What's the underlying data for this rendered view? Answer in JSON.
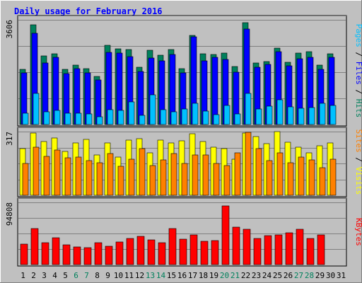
{
  "chart_data": {
    "type": "bar",
    "title": "Daily usage for February 2016",
    "days": [
      "1",
      "2",
      "3",
      "4",
      "5",
      "6",
      "7",
      "8",
      "9",
      "10",
      "11",
      "12",
      "13",
      "14",
      "15",
      "16",
      "17",
      "18",
      "19",
      "20",
      "21",
      "22",
      "23",
      "24",
      "25",
      "26",
      "27",
      "28",
      "29",
      "30",
      "31"
    ],
    "weekend_days": [
      "6",
      "7",
      "13",
      "14",
      "20",
      "21",
      "27",
      "28"
    ],
    "panels": [
      {
        "ymax": 3606,
        "ymax_label": "3606",
        "label_parts": [
          {
            "text": "Pages",
            "color": "#00C0FF"
          },
          {
            "text": " / ",
            "color": "#000000"
          },
          {
            "text": "Files",
            "color": "#0000FF"
          },
          {
            "text": " / ",
            "color": "#000000"
          },
          {
            "text": "Hits",
            "color": "#00805C"
          }
        ],
        "series": [
          {
            "name": "Hits",
            "color": "#00805C",
            "values": [
              1890,
              3444,
              2361,
              2444,
              1891,
              2058,
              1914,
              1656,
              2723,
              2612,
              2576,
              1980,
              2568,
              2389,
              2584,
              1928,
              3071,
              2431,
              2412,
              2464,
              2009,
              3503,
              2123,
              2178,
              2638,
              2156,
              2450,
              2506,
              2041,
              2440,
              null
            ]
          },
          {
            "name": "Files",
            "color": "#0000FF",
            "values": [
              1770,
              3144,
              2124,
              2305,
              1759,
              1927,
              1779,
              1528,
              2493,
              2462,
              2346,
              1816,
              2291,
              2186,
              2409,
              1768,
              3012,
              2194,
              2320,
              2233,
              1791,
              3300,
              1978,
              2071,
              2510,
              2026,
              2266,
              2316,
              1908,
              2312,
              null
            ]
          },
          {
            "name": "Pages",
            "color": "#00C0FF",
            "values": [
              400,
              1082,
              436,
              489,
              400,
              402,
              357,
              267,
              515,
              492,
              787,
              315,
              1021,
              522,
              436,
              534,
              727,
              453,
              332,
              648,
              371,
              1061,
              548,
              627,
              862,
              616,
              559,
              579,
              722,
              660,
              null
            ]
          }
        ]
      },
      {
        "ymax": 317,
        "ymax_label": "317",
        "label_parts": [
          {
            "text": "Sites",
            "color": "#FF8000"
          },
          {
            "text": " / ",
            "color": "#000000"
          },
          {
            "text": "Visits",
            "color": "#FFFF00"
          }
        ],
        "series": [
          {
            "name": "Visits",
            "color": "#FFFF00",
            "values": [
              234,
              310,
              268,
              284,
              219,
              260,
              277,
              201,
              260,
              190,
              275,
              283,
              213,
              275,
              260,
              272,
              305,
              267,
              239,
              234,
              179,
              310,
              292,
              258,
              317,
              263,
              240,
              212,
              247,
              261,
              null
            ]
          },
          {
            "name": "Sites",
            "color": "#FF8000",
            "values": [
              157,
              241,
              195,
              227,
              186,
              190,
              171,
              161,
              207,
              146,
              180,
              231,
              147,
              177,
              209,
              160,
              201,
              202,
              160,
              147,
              212,
              314,
              234,
              173,
              213,
              163,
              190,
              175,
              139,
              181,
              null
            ]
          }
        ]
      },
      {
        "ymax": 94808,
        "ymax_label": "94808",
        "label_parts": [
          {
            "text": "KBytes",
            "color": "#FF0000"
          }
        ],
        "series": [
          {
            "name": "KBytes",
            "color": "#FF0000",
            "values": [
              31400,
              54800,
              33400,
              41400,
              30400,
              26400,
              25400,
              33400,
              28000,
              35000,
              40000,
              43000,
              37600,
              33400,
              55000,
              39000,
              45600,
              35500,
              37000,
              89000,
              57000,
              53900,
              40000,
              44600,
              45000,
              49000,
              54000,
              39800,
              45300,
              null,
              null
            ]
          }
        ]
      }
    ]
  }
}
